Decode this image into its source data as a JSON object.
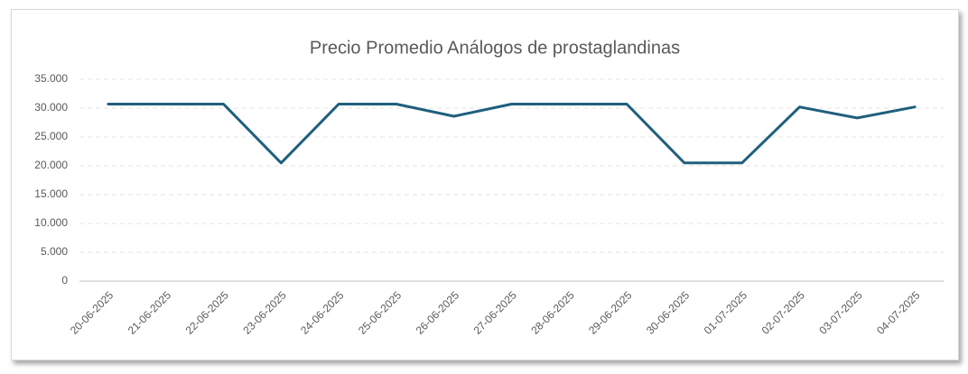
{
  "chart_data": {
    "type": "line",
    "title": "Precio Promedio Análogos de prostaglandinas",
    "categories": [
      "20-06-2025",
      "21-06-2025",
      "22-06-2025",
      "23-06-2025",
      "24-06-2025",
      "25-06-2025",
      "26-06-2025",
      "27-06-2025",
      "28-06-2025",
      "29-06-2025",
      "30-06-2025",
      "01-07-2025",
      "02-07-2025",
      "03-07-2025",
      "04-07-2025"
    ],
    "values": [
      30700,
      30700,
      30700,
      20500,
      30700,
      30700,
      28600,
      30700,
      30700,
      30700,
      20500,
      20500,
      30200,
      28300,
      30200
    ],
    "color": "#1f5f7d",
    "ylim": [
      0,
      35000
    ],
    "yticks": [
      0,
      {
        "value": 5000,
        "label": "5.000"
      },
      {
        "value": 10000,
        "label": "10.000"
      },
      {
        "value": 15000,
        "label": "15.000"
      },
      {
        "value": 20000,
        "label": "20.000"
      },
      {
        "value": 25000,
        "label": "25.000"
      },
      {
        "value": 30000,
        "label": "30.000"
      },
      {
        "value": 35000,
        "label": "35.000"
      }
    ],
    "grid": true
  }
}
